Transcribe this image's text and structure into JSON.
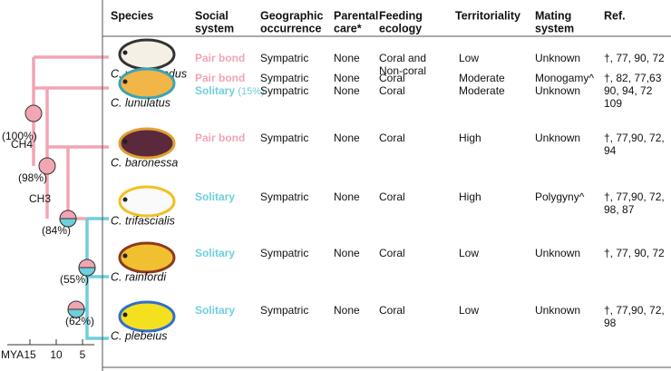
{
  "table": {
    "headers": [
      [
        "Species"
      ],
      [
        "Social",
        "system"
      ],
      [
        "Geographic",
        "occurrence"
      ],
      [
        "Parental",
        "care*"
      ],
      [
        "Feeding",
        "ecology"
      ],
      [
        "Territoriality"
      ],
      [
        "Mating",
        "system"
      ],
      [
        "Ref."
      ]
    ],
    "rows": [
      {
        "species": "C. vagabundus",
        "social": [
          {
            "text": "Pair bond",
            "color": "#f2a5b3"
          }
        ],
        "geographic": [
          "Sympatric"
        ],
        "parental": [
          "None"
        ],
        "feeding": [
          "Coral and",
          "Non-coral"
        ],
        "territoriality": [
          "Low"
        ],
        "mating": [
          "Unknown"
        ],
        "ref": [
          "†, 77, 90, 72"
        ]
      },
      {
        "species": "C. lunulatus",
        "social": [
          {
            "text": "Pair bond",
            "color": "#f2a5b3"
          },
          {
            "text": "Solitary",
            "note": "(15%)",
            "color": "#6fcfdc"
          }
        ],
        "geographic": [
          "Sympatric",
          "Sympatric"
        ],
        "parental": [
          "None",
          "None"
        ],
        "feeding": [
          "Coral",
          "Coral"
        ],
        "territoriality": [
          "Moderate",
          "Moderate"
        ],
        "mating": [
          "Monogamy^",
          "Unknown"
        ],
        "ref": [
          "†, 82, 77,63",
          "90, 94, 72",
          "109"
        ]
      },
      {
        "species": "C. baronessa",
        "social": [
          {
            "text": "Pair bond",
            "color": "#f2a5b3"
          }
        ],
        "geographic": [
          "Sympatric"
        ],
        "parental": [
          "None"
        ],
        "feeding": [
          "Coral"
        ],
        "territoriality": [
          "High"
        ],
        "mating": [
          "Unknown"
        ],
        "ref": [
          "†, 77,90, 72,",
          "94"
        ]
      },
      {
        "species": "C. trifascialis",
        "social": [
          {
            "text": "Solitary",
            "color": "#6fcfdc"
          }
        ],
        "geographic": [
          "Sympatric"
        ],
        "parental": [
          "None"
        ],
        "feeding": [
          "Coral"
        ],
        "territoriality": [
          "High"
        ],
        "mating": [
          "Polygyny^"
        ],
        "ref": [
          "†, 77,90, 72,",
          "98, 87"
        ]
      },
      {
        "species": "C. rainfordi",
        "social": [
          {
            "text": "Solitary",
            "color": "#6fcfdc"
          }
        ],
        "geographic": [
          "Sympatric"
        ],
        "parental": [
          "None"
        ],
        "feeding": [
          "Coral"
        ],
        "territoriality": [
          "Low"
        ],
        "mating": [
          "Unknown"
        ],
        "ref": [
          "†, 77, 90, 72"
        ]
      },
      {
        "species": "C. plebeius",
        "social": [
          {
            "text": "Solitary",
            "color": "#6fcfdc"
          }
        ],
        "geographic": [
          "Sympatric"
        ],
        "parental": [
          "None"
        ],
        "feeding": [
          "Coral"
        ],
        "territoriality": [
          "Low"
        ],
        "mating": [
          "Unknown"
        ],
        "ref": [
          "†, 77,90, 72,",
          "98"
        ]
      }
    ]
  },
  "tree": {
    "nodes": [
      {
        "label": "(100%)",
        "clade": "CH4"
      },
      {
        "label": "(98%)",
        "clade": "CH3"
      },
      {
        "label": "(84%)"
      },
      {
        "label": "(55%)"
      },
      {
        "label": "(62%)"
      }
    ],
    "axis": {
      "label": "MYA",
      "ticks": [
        15,
        10,
        5
      ]
    }
  }
}
